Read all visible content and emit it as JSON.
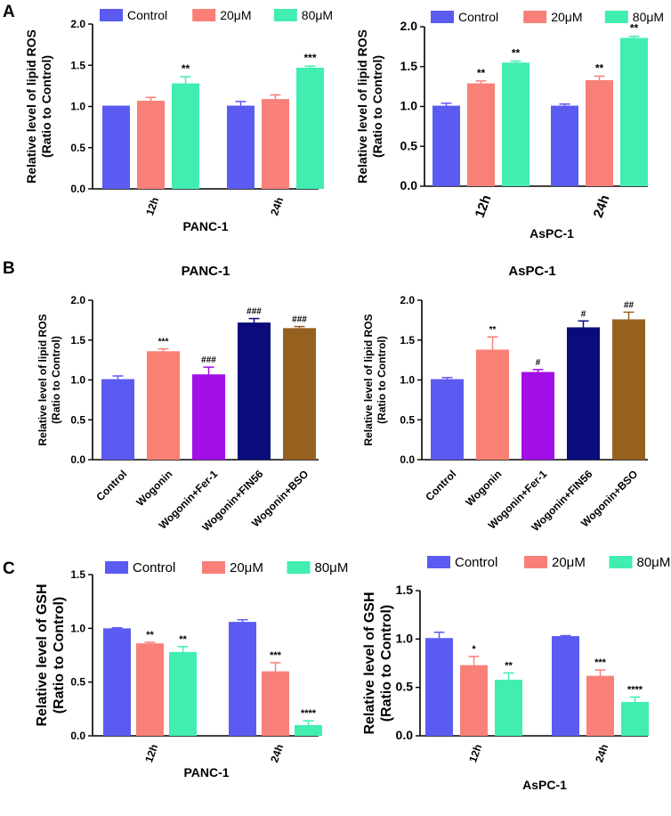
{
  "panel_letters": {
    "a": "A",
    "b": "B",
    "c": "C"
  },
  "colors": {
    "control": "#5b5bf2",
    "d20": "#f88079",
    "d80": "#41eeb0",
    "wogonin": "#fa8073",
    "fer1": "#a10ee6",
    "fin56": "#0b0b7c",
    "bso": "#96601f"
  },
  "chart_data": [
    {
      "id": "A1",
      "type": "bar",
      "title": "",
      "subtitle": "PANC-1",
      "ylabel": "Relative level of lipid ROS",
      "ylabel2": "(Ratio to Control)",
      "ylim": [
        0,
        2.0
      ],
      "yticks": [
        "0.0",
        "0.5",
        "1.0",
        "1.5",
        "2.0"
      ],
      "categories": [
        "12h",
        "24h"
      ],
      "legend": [
        "Control",
        "20μM",
        "80μM"
      ],
      "series": [
        {
          "name": "Control",
          "values": [
            1.01,
            1.01
          ],
          "errors": [
            0,
            0.05
          ],
          "marks": [
            "",
            ""
          ]
        },
        {
          "name": "20μM",
          "values": [
            1.07,
            1.09
          ],
          "errors": [
            0.04,
            0.05
          ],
          "marks": [
            "",
            ""
          ]
        },
        {
          "name": "80μM",
          "values": [
            1.28,
            1.47
          ],
          "errors": [
            0.08,
            0.02
          ],
          "marks": [
            "**",
            "***"
          ]
        }
      ]
    },
    {
      "id": "A2",
      "type": "bar",
      "title": "",
      "subtitle": "AsPC-1",
      "ylabel": "Relative level of lipid ROS",
      "ylabel2": "(Ratio to Control)",
      "ylim": [
        0,
        2.0
      ],
      "yticks": [
        "0.0",
        "0.5",
        "1.0",
        "1.5",
        "2.0"
      ],
      "categories": [
        "12h",
        "24h"
      ],
      "legend": [
        "Control",
        "20μM",
        "80μM"
      ],
      "series": [
        {
          "name": "Control",
          "values": [
            1.01,
            1.01
          ],
          "errors": [
            0.03,
            0.02
          ],
          "marks": [
            "",
            ""
          ]
        },
        {
          "name": "20μM",
          "values": [
            1.29,
            1.33
          ],
          "errors": [
            0.03,
            0.05
          ],
          "marks": [
            "**",
            "**"
          ]
        },
        {
          "name": "80μM",
          "values": [
            1.55,
            1.86
          ],
          "errors": [
            0.02,
            0.02
          ],
          "marks": [
            "**",
            "**"
          ]
        }
      ]
    },
    {
      "id": "B1",
      "type": "bar",
      "title": "PANC-1",
      "subtitle": "",
      "ylabel": "Relative level of lipid ROS",
      "ylabel2": "(Ratio to Control)",
      "ylim": [
        0,
        2.0
      ],
      "yticks": [
        "0.0",
        "0.5",
        "1.0",
        "1.5",
        "2.0"
      ],
      "categories": [
        "Control",
        "Wogonin",
        "Wogonin+Fer-1",
        "Wogonin+FIN56",
        "Wogonin+BSO"
      ],
      "values": [
        1.01,
        1.36,
        1.07,
        1.72,
        1.65
      ],
      "errors": [
        0.04,
        0.03,
        0.09,
        0.05,
        0.02
      ],
      "marks": [
        "",
        "***",
        "###",
        "###",
        "###"
      ]
    },
    {
      "id": "B2",
      "type": "bar",
      "title": "AsPC-1",
      "subtitle": "",
      "ylabel": "Relative level of lipid ROS",
      "ylabel2": "(Ratio to Control)",
      "ylim": [
        0,
        2.0
      ],
      "yticks": [
        "0.0",
        "0.5",
        "1.0",
        "1.5",
        "2.0"
      ],
      "categories": [
        "Control",
        "Wogonin",
        "Wogonin+Fer-1",
        "Wogonin+FIN56",
        "Wogonin+BSO"
      ],
      "values": [
        1.01,
        1.38,
        1.1,
        1.66,
        1.76
      ],
      "errors": [
        0.02,
        0.16,
        0.03,
        0.08,
        0.09
      ],
      "marks": [
        "",
        "**",
        "#",
        "#",
        "##"
      ]
    },
    {
      "id": "C1",
      "type": "bar",
      "title": "",
      "subtitle": "PANC-1",
      "ylabel": "Relative level of GSH",
      "ylabel2": "(Ratio to Control)",
      "ylim": [
        0,
        1.5
      ],
      "yticks": [
        "0.0",
        "0.5",
        "1.0",
        "1.5"
      ],
      "categories": [
        "12h",
        "24h"
      ],
      "legend": [
        "Control",
        "20μM",
        "80μM"
      ],
      "series": [
        {
          "name": "Control",
          "values": [
            1.0,
            1.06
          ],
          "errors": [
            0.005,
            0.02
          ],
          "marks": [
            "",
            ""
          ]
        },
        {
          "name": "20μM",
          "values": [
            0.86,
            0.6
          ],
          "errors": [
            0.01,
            0.08
          ],
          "marks": [
            "**",
            "***"
          ]
        },
        {
          "name": "80μM",
          "values": [
            0.78,
            0.1
          ],
          "errors": [
            0.05,
            0.04
          ],
          "marks": [
            "**",
            "****"
          ]
        }
      ]
    },
    {
      "id": "C2",
      "type": "bar",
      "title": "",
      "subtitle": "AsPC-1",
      "ylabel": "Relative level of GSH",
      "ylabel2": "(Ratio to Control)",
      "ylim": [
        0,
        1.5
      ],
      "yticks": [
        "0.0",
        "0.5",
        "1.0",
        "1.5"
      ],
      "categories": [
        "12h",
        "24h"
      ],
      "legend": [
        "Control",
        "20μM",
        "80μM"
      ],
      "series": [
        {
          "name": "Control",
          "values": [
            1.01,
            1.03
          ],
          "errors": [
            0.06,
            0.005
          ],
          "marks": [
            "",
            ""
          ]
        },
        {
          "name": "20μM",
          "values": [
            0.73,
            0.62
          ],
          "errors": [
            0.09,
            0.06
          ],
          "marks": [
            "*",
            "***"
          ]
        },
        {
          "name": "80μM",
          "values": [
            0.58,
            0.35
          ],
          "errors": [
            0.07,
            0.05
          ],
          "marks": [
            "**",
            "****"
          ]
        }
      ]
    }
  ]
}
